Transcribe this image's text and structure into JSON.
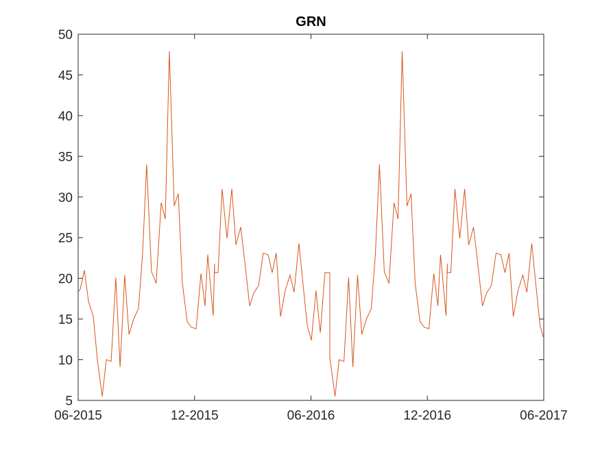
{
  "chart_data": {
    "type": "line",
    "title": "GRN",
    "x": [
      0,
      0.11,
      0.32,
      0.53,
      0.78,
      0.99,
      1.24,
      1.45,
      1.7,
      1.94,
      2.16,
      2.4,
      2.62,
      2.86,
      3.11,
      3.32,
      3.53,
      3.78,
      4.02,
      4.28,
      4.49,
      4.7,
      4.95,
      5.16,
      5.37,
      5.62,
      5.83,
      6.08,
      6.33,
      6.54,
      6.68,
      6.96,
      7.03,
      7.03,
      7.21,
      7.42,
      7.67,
      7.92,
      8.13,
      8.38,
      8.59,
      8.84,
      9.05,
      9.3,
      9.54,
      9.79,
      10.0,
      10.21,
      10.43,
      10.67,
      10.92,
      11.13,
      11.38,
      11.59,
      11.81,
      12.02,
      12.26,
      12.48,
      12.72,
      12.97,
      12.97,
      13.24,
      13.45,
      13.7,
      13.94,
      14.16,
      14.4,
      14.62,
      14.86,
      15.11,
      15.32,
      15.53,
      15.78,
      16.02,
      16.28,
      16.49,
      16.7,
      16.95,
      17.16,
      17.37,
      17.62,
      17.83,
      18.08,
      18.33,
      18.54,
      18.68,
      18.96,
      19.03,
      19.03,
      19.21,
      19.42,
      19.67,
      19.92,
      20.13,
      20.38,
      20.59,
      20.84,
      21.05,
      21.3,
      21.54,
      21.79,
      22.0,
      22.21,
      22.43,
      22.67,
      22.92,
      23.13,
      23.38,
      23.59,
      23.81,
      24
    ],
    "series": [
      {
        "color": "#d95319",
        "values": [
          18.3,
          18.7,
          21,
          17.2,
          15.3,
          10,
          5.5,
          10,
          9.8,
          20.1,
          9.1,
          20.4,
          13.1,
          15,
          16.3,
          23,
          34,
          20.8,
          19.4,
          29.3,
          27.3,
          47.9,
          28.9,
          30.4,
          19.4,
          14.7,
          14,
          13.8,
          20.6,
          16.6,
          22.9,
          15.4,
          21.8,
          20.7,
          20.7,
          31,
          24.9,
          31,
          24.1,
          26.3,
          22,
          16.6,
          18.2,
          19.1,
          23.1,
          22.9,
          20.7,
          23.1,
          15.3,
          18.5,
          20.4,
          18.3,
          24.3,
          19.3,
          14.2,
          12.4,
          18.5,
          13.3,
          20.7,
          20.7,
          10.3,
          5.5,
          10,
          9.8,
          20.1,
          9.1,
          20.4,
          13.1,
          15,
          16.3,
          23,
          34,
          20.8,
          19.4,
          29.3,
          27.3,
          47.9,
          28.9,
          30.4,
          19.4,
          14.7,
          14,
          13.8,
          20.6,
          16.6,
          22.9,
          15.4,
          21.8,
          20.7,
          20.7,
          31,
          24.9,
          31,
          24.1,
          26.3,
          22,
          16.6,
          18.2,
          19.1,
          23.1,
          22.9,
          20.7,
          23.1,
          15.3,
          18.5,
          20.4,
          18.3,
          24.3,
          19.3,
          14.2,
          12.6
        ]
      }
    ],
    "xlim": [
      0,
      24
    ],
    "xticks": [
      {
        "value": 0,
        "label": "06-2015"
      },
      {
        "value": 6,
        "label": "12-2015"
      },
      {
        "value": 12,
        "label": "06-2016"
      },
      {
        "value": 18,
        "label": "12-2016"
      },
      {
        "value": 24,
        "label": "06-2017"
      }
    ],
    "ylim": [
      5,
      50
    ],
    "yticks": [
      5,
      10,
      15,
      20,
      25,
      30,
      35,
      40,
      45,
      50
    ],
    "grid": false
  }
}
